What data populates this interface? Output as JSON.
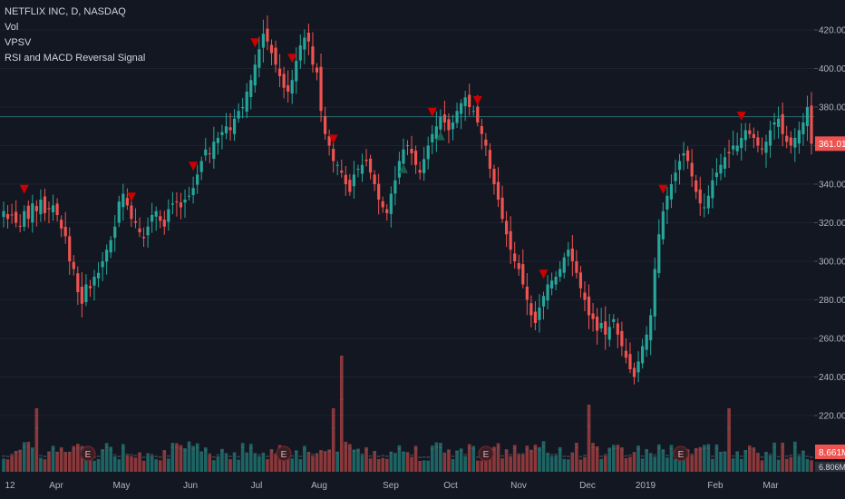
{
  "legend": {
    "symbol": "NETFLIX INC, D, NASDAQ",
    "indicator_vol": "Vol",
    "indicator_vpsv": "VPSV",
    "indicator_rsi_macd": "RSI and MACD Reversal Signal"
  },
  "colors": {
    "background": "#131722",
    "up": "#26a69a",
    "down": "#ef5350",
    "signal_down": "#cc0000",
    "signal_up": "#1b5e4e",
    "grid": "#1e222d",
    "hline": "#2a6b73",
    "price_badge": "#ef5350",
    "vol_badge": "#ef5350"
  },
  "chart_data": {
    "type": "candlestick",
    "y_ticks": [
      "420.00",
      "400.00",
      "380.00",
      "360.00",
      "340.00",
      "320.00",
      "300.00",
      "280.00",
      "260.00",
      "240.00",
      "220.00"
    ],
    "x_ticks": [
      "12",
      "Apr",
      "May",
      "Jun",
      "Jul",
      "Aug",
      "Sep",
      "Oct",
      "Nov",
      "Dec",
      "2019",
      "Feb",
      "Mar"
    ],
    "ylim": [
      200,
      430
    ],
    "horizontal_line": 375,
    "last_price_label": "361.01",
    "last_volume_label": "8.661M",
    "cut_label": "6.806M",
    "earnings_markers": [
      "E",
      "E",
      "E",
      "E"
    ],
    "closes": [
      326,
      322,
      324,
      320,
      318,
      326,
      322,
      330,
      326,
      332,
      325,
      327,
      329,
      324,
      317,
      313,
      300,
      296,
      284,
      278,
      288,
      286,
      292,
      294,
      300,
      306,
      311,
      318,
      331,
      335,
      329,
      322,
      320,
      315,
      312,
      318,
      324,
      326,
      321,
      318,
      327,
      330,
      331,
      328,
      332,
      334,
      338,
      345,
      352,
      358,
      356,
      362,
      364,
      367,
      370,
      368,
      374,
      378,
      380,
      388,
      394,
      402,
      410,
      418,
      414,
      408,
      402,
      396,
      390,
      388,
      394,
      404,
      412,
      416,
      414,
      402,
      398,
      378,
      366,
      360,
      352,
      350,
      346,
      340,
      336,
      345,
      348,
      350,
      352,
      346,
      340,
      332,
      328,
      325,
      335,
      342,
      352,
      358,
      360,
      356,
      350,
      346,
      353,
      360,
      366,
      370,
      375,
      372,
      368,
      372,
      378,
      382,
      385,
      380,
      378,
      372,
      366,
      360,
      348,
      340,
      332,
      322,
      314,
      306,
      300,
      296,
      288,
      280,
      272,
      268,
      276,
      282,
      288,
      290,
      292,
      296,
      302,
      306,
      300,
      294,
      286,
      280,
      272,
      270,
      264,
      268,
      262,
      266,
      270,
      262,
      256,
      250,
      244,
      240,
      248,
      256,
      262,
      272,
      296,
      314,
      326,
      334,
      340,
      346,
      352,
      356,
      352,
      344,
      336,
      330,
      328,
      334,
      342,
      346,
      350,
      354,
      356,
      360,
      360,
      364,
      368,
      366,
      364,
      360,
      358,
      362,
      368,
      372,
      374,
      366,
      362,
      360,
      364,
      368,
      372,
      380,
      361
    ]
  }
}
